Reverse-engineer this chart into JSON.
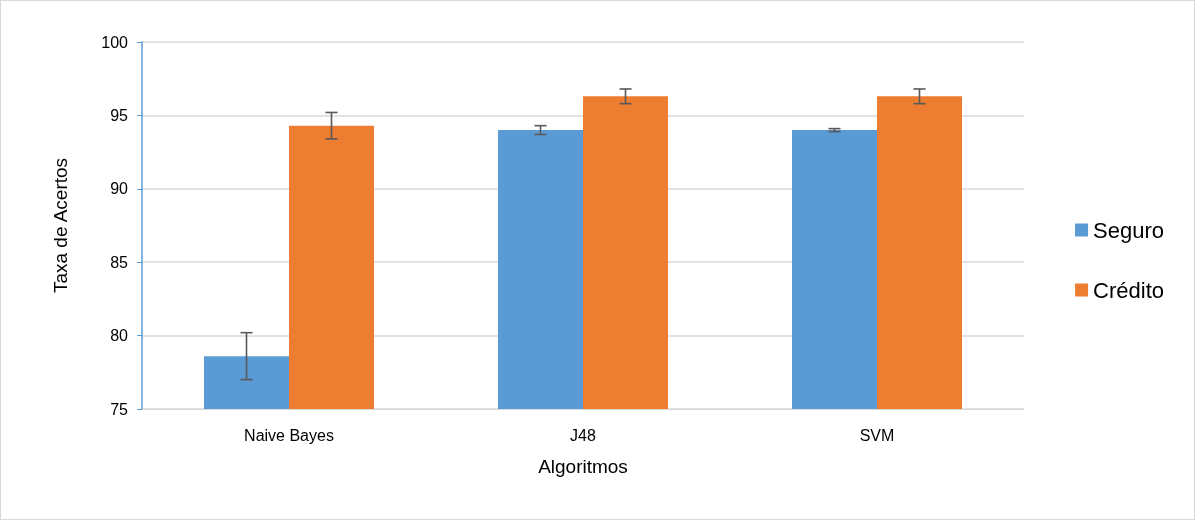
{
  "chart_data": {
    "type": "bar",
    "xlabel": "Algoritmos",
    "ylabel": "Taxa de Acertos",
    "categories": [
      "Naive Bayes",
      "J48",
      "SVM"
    ],
    "series": [
      {
        "name": "Seguro",
        "color": "#5b9bd5",
        "values": [
          78.6,
          94.0,
          94.0
        ],
        "errors": [
          1.6,
          0.3,
          0.1
        ]
      },
      {
        "name": "Crédito",
        "color": "#ed7d31",
        "values": [
          94.3,
          96.3,
          96.3
        ],
        "errors": [
          0.9,
          0.5,
          0.5
        ]
      }
    ],
    "ylim": [
      75,
      100
    ],
    "yticks": [
      75,
      80,
      85,
      90,
      95,
      100
    ],
    "grid": "y",
    "legend": "right"
  }
}
